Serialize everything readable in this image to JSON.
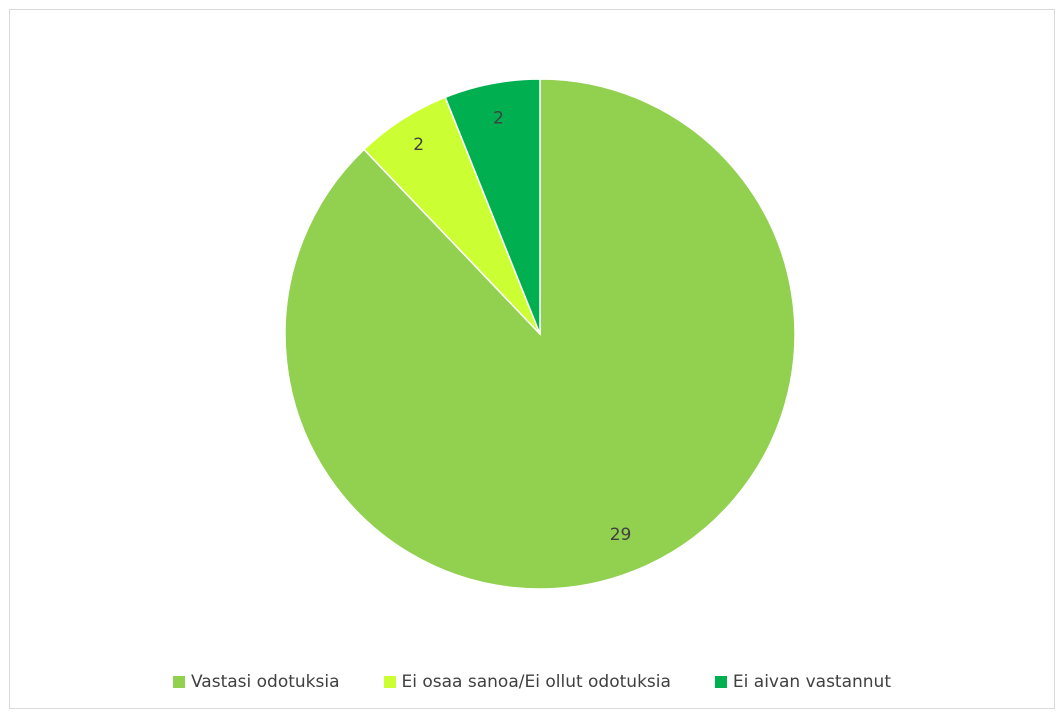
{
  "chart_data": {
    "type": "pie",
    "title": "",
    "categories": [
      "Vastasi odotuksia",
      "Ei osaa sanoa/Ei ollut odotuksia",
      "Ei aivan vastannut"
    ],
    "values": [
      29,
      2,
      2
    ],
    "colors": [
      "#92d050",
      "#ccff33",
      "#00b050"
    ],
    "data_labels": [
      "29",
      "2",
      "2"
    ],
    "legend": "bottom",
    "start_angle_deg": 0,
    "direction": "clockwise"
  }
}
